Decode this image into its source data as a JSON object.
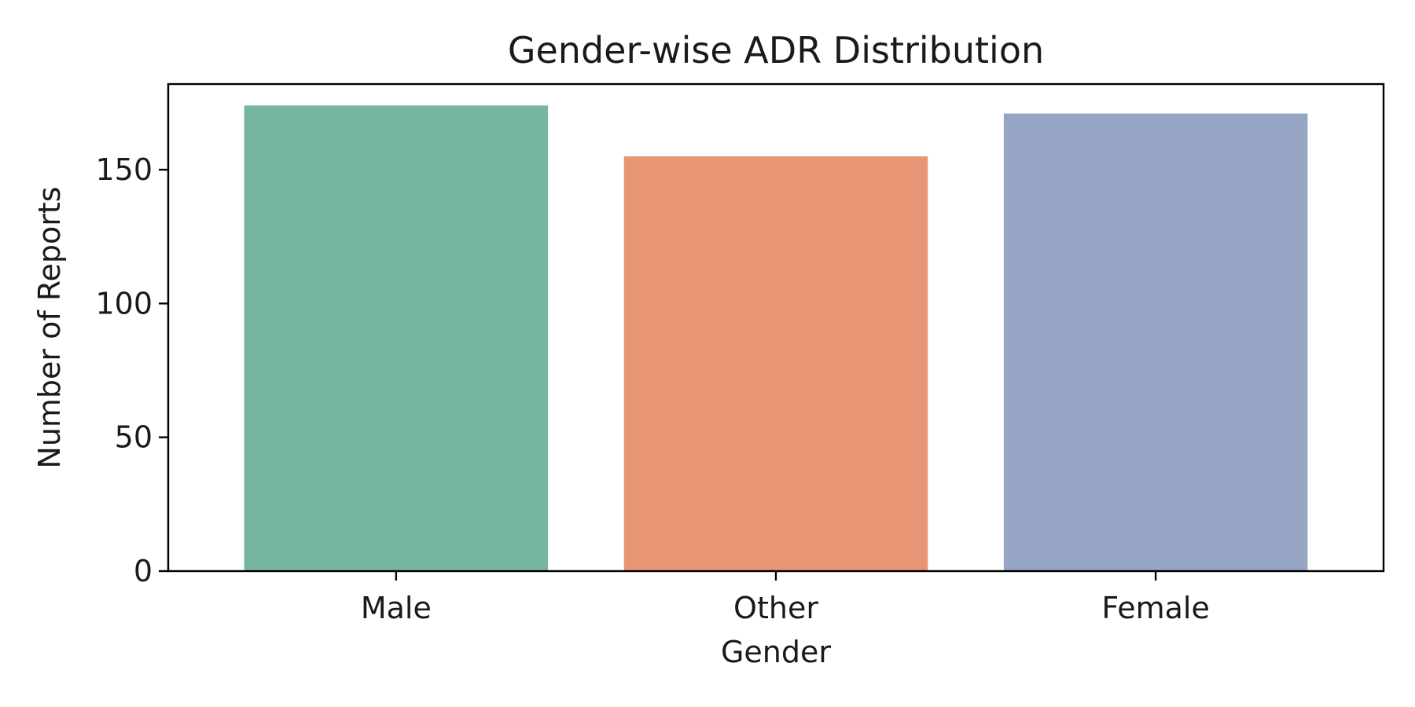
{
  "chart_data": {
    "type": "bar",
    "title": "Gender-wise ADR Distribution",
    "xlabel": "Gender",
    "ylabel": "Number of Reports",
    "categories": [
      "Male",
      "Other",
      "Female"
    ],
    "values": [
      174,
      155,
      171
    ],
    "colors": [
      "#75b5a1",
      "#e89675",
      "#96a5c3"
    ],
    "ylim": [
      0,
      182
    ],
    "yticks": [
      0,
      50,
      100,
      150
    ],
    "grid": false,
    "legend": "none"
  }
}
